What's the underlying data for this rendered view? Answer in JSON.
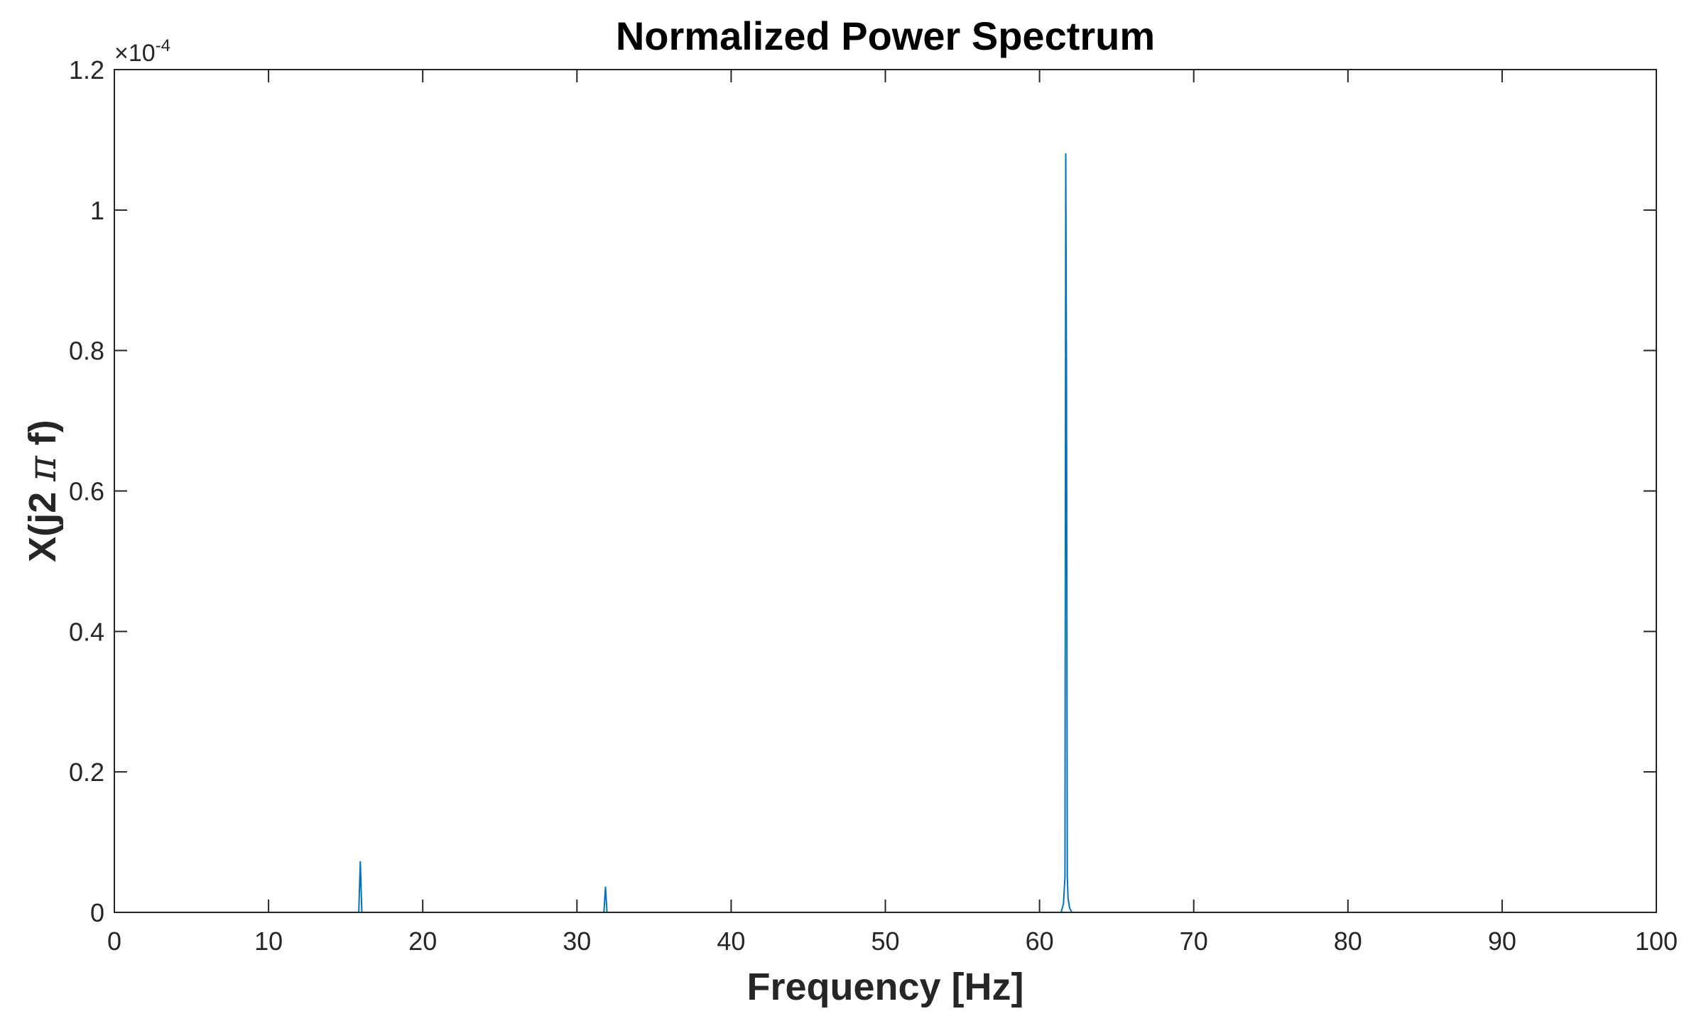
{
  "chart_data": {
    "type": "line",
    "title": "Normalized Power Spectrum",
    "xlabel": "Frequency [Hz]",
    "ylabel": {
      "prefix": "X(j2 ",
      "symbol": "π",
      "suffix": " f)"
    },
    "xlim": [
      0,
      100
    ],
    "ylim": [
      0,
      1.2
    ],
    "y_exponent": {
      "prefix": "×10",
      "power": "-4"
    },
    "xticks": [
      {
        "value": 0,
        "label": "0"
      },
      {
        "value": 10,
        "label": "10"
      },
      {
        "value": 20,
        "label": "20"
      },
      {
        "value": 30,
        "label": "30"
      },
      {
        "value": 40,
        "label": "40"
      },
      {
        "value": 50,
        "label": "50"
      },
      {
        "value": 60,
        "label": "60"
      },
      {
        "value": 70,
        "label": "70"
      },
      {
        "value": 80,
        "label": "80"
      },
      {
        "value": 90,
        "label": "90"
      },
      {
        "value": 100,
        "label": "100"
      }
    ],
    "yticks": [
      {
        "value": 0,
        "label": "0"
      },
      {
        "value": 0.2,
        "label": "0.2"
      },
      {
        "value": 0.4,
        "label": "0.4"
      },
      {
        "value": 0.6,
        "label": "0.6"
      },
      {
        "value": 0.8,
        "label": "0.8"
      },
      {
        "value": 1.0,
        "label": "1"
      },
      {
        "value": 1.2,
        "label": "1.2"
      }
    ],
    "grid": false,
    "box": true,
    "series": [
      {
        "color": "#0072BD",
        "x": [
          0,
          15.85,
          15.95,
          16.05,
          31.75,
          31.85,
          31.95,
          61.4,
          61.55,
          61.65,
          61.7,
          61.75,
          61.8,
          61.85,
          61.95,
          62.1,
          100
        ],
        "y": [
          0,
          0,
          0.072,
          0,
          0,
          0.036,
          0,
          0,
          0.012,
          0.05,
          1.08,
          0.75,
          0.05,
          0.02,
          0.006,
          0,
          0
        ]
      }
    ]
  }
}
